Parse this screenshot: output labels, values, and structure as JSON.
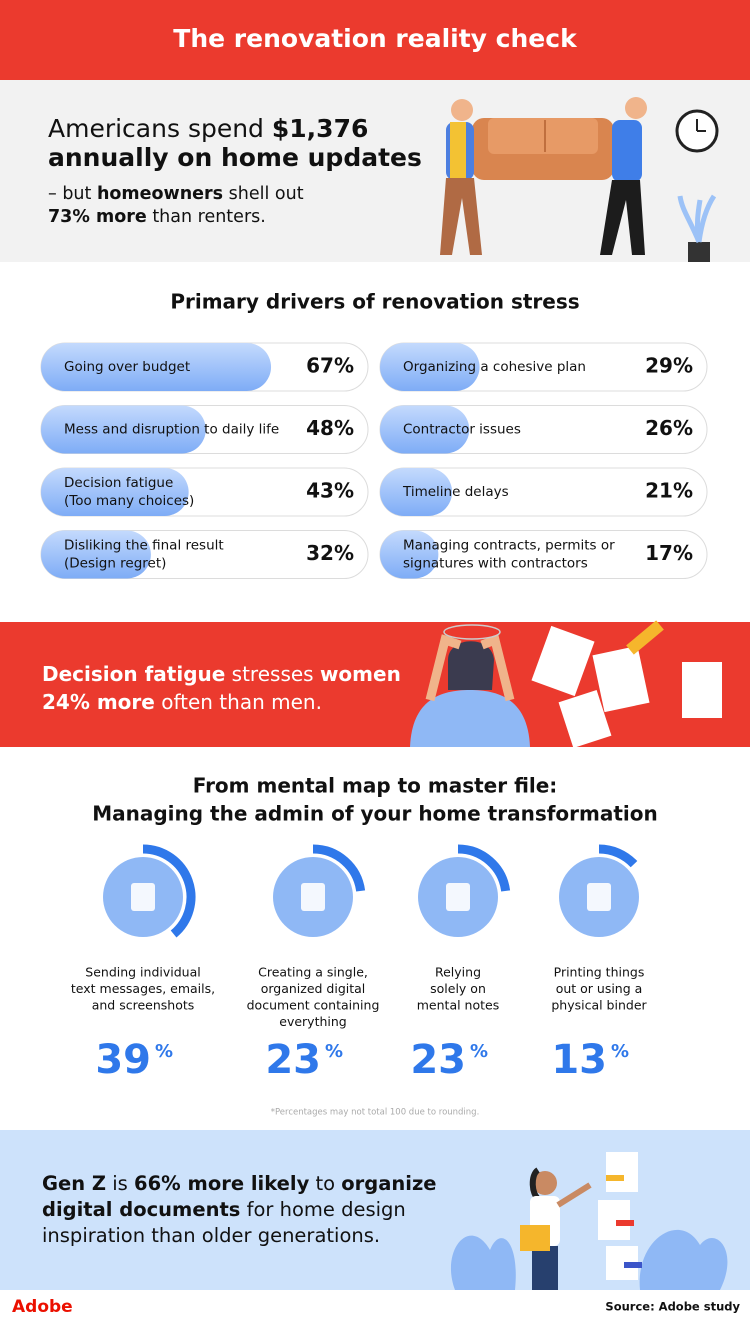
{
  "header": {
    "title": "The renovation reality check"
  },
  "intro": {
    "headline": [
      [
        {
          "text": "Americans spend ",
          "bold": false
        },
        {
          "text": "$1,376",
          "bold": true
        }
      ],
      [
        {
          "text": "annually on home updates",
          "bold": true
        }
      ]
    ],
    "subtext": [
      [
        {
          "text": "– but ",
          "bold": false
        },
        {
          "text": "homeowners",
          "bold": true
        },
        {
          "text": " shell out",
          "bold": false
        }
      ],
      [
        {
          "text": "73% more",
          "bold": true
        },
        {
          "text": " than renters.",
          "bold": false
        }
      ]
    ]
  },
  "stress": {
    "title": "Primary drivers of renovation stress",
    "items": [
      {
        "label": [
          "Going over budget"
        ],
        "value": 67,
        "value_label": "67%"
      },
      {
        "label": [
          "Mess and disruption to daily life"
        ],
        "value": 48,
        "value_label": "48%"
      },
      {
        "label": [
          "Decision fatigue",
          "(Too many choices)"
        ],
        "value": 43,
        "value_label": "43%"
      },
      {
        "label": [
          "Disliking the final result",
          "(Design regret)"
        ],
        "value": 32,
        "value_label": "32%"
      },
      {
        "label": [
          "Organizing a cohesive plan"
        ],
        "value": 29,
        "value_label": "29%"
      },
      {
        "label": [
          "Contractor issues"
        ],
        "value": 26,
        "value_label": "26%"
      },
      {
        "label": [
          "Timeline delays"
        ],
        "value": 21,
        "value_label": "21%"
      },
      {
        "label": [
          "Managing contracts, permits or",
          "signatures with contractors"
        ],
        "value": 17,
        "value_label": "17%"
      }
    ]
  },
  "callout": {
    "lines": [
      [
        {
          "text": "Decision fatigue",
          "bold": true
        },
        {
          "text": " stresses ",
          "bold": false
        },
        {
          "text": "women",
          "bold": true
        }
      ],
      [
        {
          "text": "24% more",
          "bold": true
        },
        {
          "text": " often than men.",
          "bold": false
        }
      ]
    ]
  },
  "admin": {
    "title": [
      "From mental map to master file:",
      "Managing the admin of your home transformation"
    ],
    "unit": "%",
    "items": [
      {
        "label": [
          "Sending individual",
          "text messages, emails,",
          "and screenshots"
        ],
        "value": 39
      },
      {
        "label": [
          "Creating a single,",
          "organized digital",
          "document containing",
          "everything"
        ],
        "value": 23
      },
      {
        "label": [
          "Relying",
          "solely on",
          "mental notes"
        ],
        "value": 23
      },
      {
        "label": [
          "Printing things",
          "out or using a",
          "physical binder"
        ],
        "value": 13
      }
    ],
    "footnote": "*Percentages may not total 100 due to rounding."
  },
  "genz": {
    "lines": [
      [
        {
          "text": "Gen Z",
          "bold": true
        },
        {
          "text": " is ",
          "bold": false
        },
        {
          "text": "66% more likely",
          "bold": true
        },
        {
          "text": " to ",
          "bold": false
        },
        {
          "text": "organize",
          "bold": true
        }
      ],
      [
        {
          "text": "digital documents",
          "bold": true
        },
        {
          "text": " for home design",
          "bold": false
        }
      ],
      [
        {
          "text": "inspiration than older generations.",
          "bold": false
        }
      ]
    ]
  },
  "footer": {
    "logo": "Adobe",
    "source": "Source: Adobe study"
  }
}
